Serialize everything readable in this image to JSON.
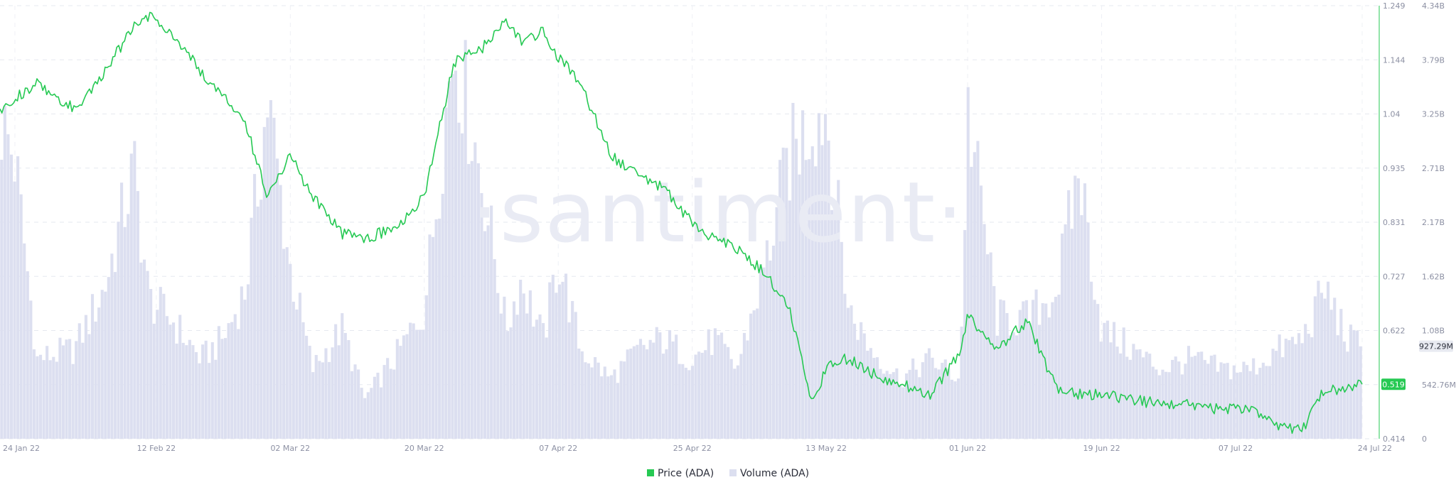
{
  "watermark": "·santiment·",
  "chart_data": {
    "type": "line",
    "x_ticks": [
      "24 Jan 22",
      "12 Feb 22",
      "02 Mar 22",
      "20 Mar 22",
      "07 Apr 22",
      "25 Apr 22",
      "13 May 22",
      "01 Jun 22",
      "19 Jun 22",
      "07 Jul 22",
      "24 Jul 22"
    ],
    "x_range": [
      "22 Jan 22",
      "24 Jul 22"
    ],
    "price_axis": {
      "ticks": [
        "1.249",
        "1.144",
        "1.04",
        "0.935",
        "0.831",
        "0.727",
        "0.622",
        "0.519",
        "0.414"
      ],
      "range": [
        0.414,
        1.249
      ],
      "color": "#26c953"
    },
    "volume_axis": {
      "ticks": [
        "4.34B",
        "3.79B",
        "3.25B",
        "2.71B",
        "2.17B",
        "1.62B",
        "1.08B",
        "542.76M",
        "0"
      ],
      "range": [
        0,
        4340000000
      ]
    },
    "current_price_label": "0.519",
    "current_volume_label": "927.29M",
    "grid": true,
    "legend_position": "bottom-center",
    "series": [
      {
        "name": "Price (ADA)",
        "color": "#26c953",
        "x": [
          "22 Jan 22",
          "24 Jan 22",
          "27 Jan 22",
          "01 Feb 22",
          "05 Feb 22",
          "09 Feb 22",
          "11 Feb 22",
          "14 Feb 22",
          "18 Feb 22",
          "21 Feb 22",
          "24 Feb 22",
          "27 Feb 22",
          "02 Mar 22",
          "05 Mar 22",
          "09 Mar 22",
          "12 Mar 22",
          "16 Mar 22",
          "20 Mar 22",
          "24 Mar 22",
          "28 Mar 22",
          "31 Mar 22",
          "02 Apr 22",
          "05 Apr 22",
          "07 Apr 22",
          "10 Apr 22",
          "14 Apr 22",
          "18 Apr 22",
          "21 Apr 22",
          "25 Apr 22",
          "28 Apr 22",
          "01 May 22",
          "05 May 22",
          "08 May 22",
          "11 May 22",
          "13 May 22",
          "16 May 22",
          "19 May 22",
          "23 May 22",
          "27 May 22",
          "31 May 22",
          "01 Jun 22",
          "05 Jun 22",
          "09 Jun 22",
          "13 Jun 22",
          "16 Jun 22",
          "19 Jun 22",
          "23 Jun 22",
          "27 Jun 22",
          "01 Jul 22",
          "05 Jul 22",
          "09 Jul 22",
          "13 Jul 22",
          "16 Jul 22",
          "19 Jul 22",
          "22 Jul 22",
          "24 Jul 22"
        ],
        "values": [
          1.05,
          1.07,
          1.1,
          1.05,
          1.12,
          1.21,
          1.23,
          1.2,
          1.12,
          1.08,
          1.02,
          0.88,
          0.96,
          0.88,
          0.81,
          0.8,
          0.82,
          0.88,
          1.14,
          1.17,
          1.22,
          1.18,
          1.2,
          1.15,
          1.1,
          0.96,
          0.92,
          0.9,
          0.83,
          0.8,
          0.78,
          0.73,
          0.67,
          0.48,
          0.55,
          0.57,
          0.54,
          0.52,
          0.5,
          0.58,
          0.65,
          0.59,
          0.64,
          0.51,
          0.5,
          0.5,
          0.49,
          0.48,
          0.48,
          0.47,
          0.47,
          0.44,
          0.43,
          0.51,
          0.51,
          0.519
        ]
      },
      {
        "name": "Volume (ADA)",
        "color": "#dcdff0",
        "x": [
          "22 Jan 22",
          "24 Jan 22",
          "27 Jan 22",
          "01 Feb 22",
          "05 Feb 22",
          "09 Feb 22",
          "11 Feb 22",
          "14 Feb 22",
          "18 Feb 22",
          "21 Feb 22",
          "24 Feb 22",
          "27 Feb 22",
          "02 Mar 22",
          "05 Mar 22",
          "09 Mar 22",
          "12 Mar 22",
          "16 Mar 22",
          "20 Mar 22",
          "24 Mar 22",
          "28 Mar 22",
          "31 Mar 22",
          "02 Apr 22",
          "05 Apr 22",
          "07 Apr 22",
          "10 Apr 22",
          "14 Apr 22",
          "18 Apr 22",
          "21 Apr 22",
          "25 Apr 22",
          "28 Apr 22",
          "01 May 22",
          "05 May 22",
          "08 May 22",
          "11 May 22",
          "13 May 22",
          "16 May 22",
          "19 May 22",
          "23 May 22",
          "27 May 22",
          "31 May 22",
          "01 Jun 22",
          "05 Jun 22",
          "09 Jun 22",
          "13 Jun 22",
          "16 Jun 22",
          "19 Jun 22",
          "23 Jun 22",
          "27 Jun 22",
          "01 Jul 22",
          "05 Jul 22",
          "09 Jul 22",
          "13 Jul 22",
          "16 Jul 22",
          "19 Jul 22",
          "22 Jul 22",
          "24 Jul 22"
        ],
        "values": [
          3200000000,
          2800000000,
          800000000,
          900000000,
          1500000000,
          2700000000,
          1400000000,
          1200000000,
          800000000,
          1000000000,
          1500000000,
          3400000000,
          1700000000,
          700000000,
          1100000000,
          400000000,
          800000000,
          1300000000,
          4000000000,
          2500000000,
          1100000000,
          1600000000,
          1000000000,
          1800000000,
          900000000,
          600000000,
          900000000,
          1000000000,
          800000000,
          1000000000,
          700000000,
          1800000000,
          2800000000,
          3200000000,
          3300000000,
          1300000000,
          900000000,
          600000000,
          800000000,
          600000000,
          3300000000,
          1200000000,
          1200000000,
          1500000000,
          2700000000,
          1100000000,
          900000000,
          700000000,
          800000000,
          700000000,
          700000000,
          900000000,
          1000000000,
          1500000000,
          1000000000,
          927290000
        ]
      }
    ]
  }
}
